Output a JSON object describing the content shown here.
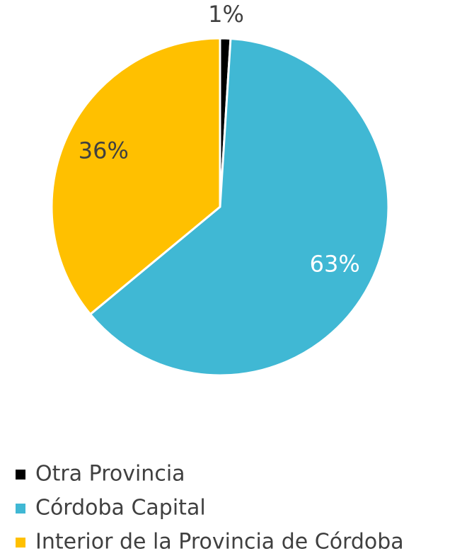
{
  "chart_data": {
    "type": "pie",
    "categories": [
      "Otra Provincia",
      "Córdoba Capital",
      "Interior de la Provincia de Córdoba"
    ],
    "values": [
      1,
      63,
      36
    ],
    "value_labels": [
      "1%",
      "63%",
      "36%"
    ],
    "colors": [
      "#000000",
      "#40b8d4",
      "#ffc000"
    ],
    "legend": "bottom"
  }
}
